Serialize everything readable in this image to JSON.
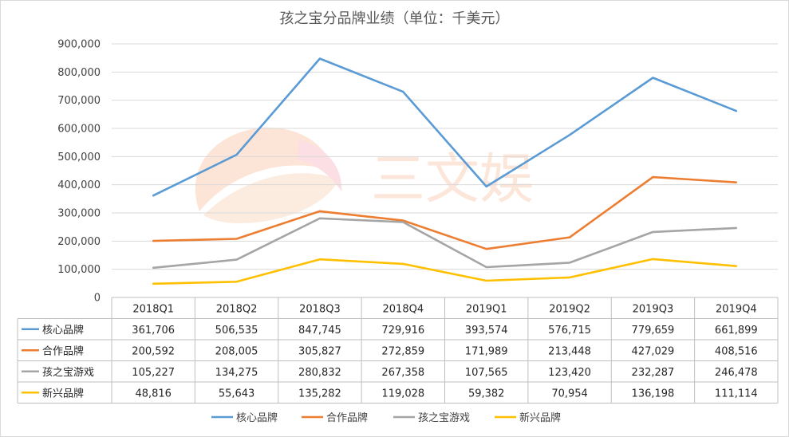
{
  "chart_data": {
    "type": "line",
    "title": "孩之宝分品牌业绩（单位：千美元）",
    "categories": [
      "2018Q1",
      "2018Q2",
      "2018Q3",
      "2018Q4",
      "2019Q1",
      "2019Q2",
      "2019Q3",
      "2019Q4"
    ],
    "ylim": [
      0,
      900000
    ],
    "yticks": [
      "0",
      "100,000",
      "200,000",
      "300,000",
      "400,000",
      "500,000",
      "600,000",
      "700,000",
      "800,000",
      "900,000"
    ],
    "grid": true,
    "legend_position": "bottom",
    "series": [
      {
        "name": "核心品牌",
        "color": "#5b9bd5",
        "values": [
          361706,
          506535,
          847745,
          729916,
          393574,
          576715,
          779659,
          661899
        ],
        "labels": [
          "361,706",
          "506,535",
          "847,745",
          "729,916",
          "393,574",
          "576,715",
          "779,659",
          "661,899"
        ]
      },
      {
        "name": "合作品牌",
        "color": "#ed7d31",
        "values": [
          200592,
          208005,
          305827,
          272859,
          171989,
          213448,
          427029,
          408516
        ],
        "labels": [
          "200,592",
          "208,005",
          "305,827",
          "272,859",
          "171,989",
          "213,448",
          "427,029",
          "408,516"
        ]
      },
      {
        "name": "孩之宝游戏",
        "color": "#a5a5a5",
        "values": [
          105227,
          134275,
          280832,
          267358,
          107565,
          123420,
          232287,
          246478
        ],
        "labels": [
          "105,227",
          "134,275",
          "280,832",
          "267,358",
          "107,565",
          "123,420",
          "232,287",
          "246,478"
        ]
      },
      {
        "name": "新兴品牌",
        "color": "#ffc000",
        "values": [
          48816,
          55643,
          135282,
          119028,
          59382,
          70954,
          136198,
          111114
        ],
        "labels": [
          "48,816",
          "55,643",
          "135,282",
          "119,028",
          "59,382",
          "70,954",
          "136,198",
          "111,114"
        ]
      }
    ]
  },
  "watermark": {
    "text": "三文娱"
  }
}
